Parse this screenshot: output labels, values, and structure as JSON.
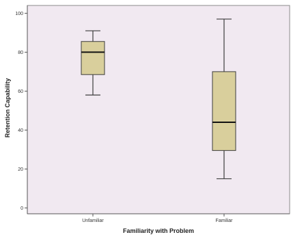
{
  "chart_data": {
    "type": "box",
    "xlabel": "Familiarity with Problem",
    "ylabel": "Retention Capability",
    "ylim": [
      -3,
      104
    ],
    "yticks": [
      0,
      20,
      40,
      60,
      80,
      100
    ],
    "grid": false,
    "legend": "none",
    "colors": {
      "plot_background": "#f1e9f1",
      "box_fill": "#d9cf9c",
      "box_stroke": "#3c3c3c",
      "axis": "#555555"
    },
    "categories": [
      "Unfamiliar",
      "Familiar"
    ],
    "boxes": [
      {
        "category": "Unfamiliar",
        "min": 58,
        "q1": 68.5,
        "median": 80,
        "q3": 85.5,
        "max": 91
      },
      {
        "category": "Familiar",
        "min": 15,
        "q1": 29.5,
        "median": 44,
        "q3": 70,
        "max": 97
      }
    ]
  }
}
